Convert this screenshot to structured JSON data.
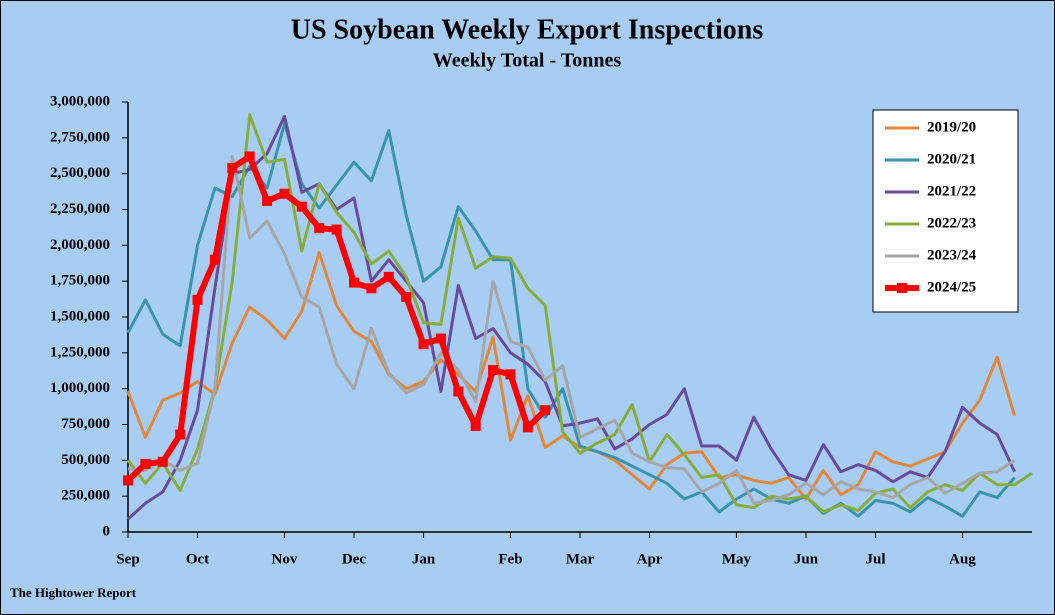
{
  "chart_data": {
    "type": "line",
    "title": "US Soybean Weekly Export Inspections",
    "subtitle": "Weekly Total - Tonnes",
    "footer": "The Hightower Report",
    "categories": [
      "Sep",
      null,
      null,
      null,
      "Oct",
      null,
      null,
      null,
      null,
      "Nov",
      null,
      null,
      null,
      "Dec",
      null,
      null,
      null,
      "Jan",
      null,
      null,
      null,
      null,
      "Feb",
      null,
      null,
      null,
      "Mar",
      null,
      null,
      null,
      "Apr",
      null,
      null,
      null,
      null,
      "May",
      null,
      null,
      null,
      "Jun",
      null,
      null,
      null,
      "Jul",
      null,
      null,
      null,
      null,
      "Aug",
      null,
      null,
      null,
      null
    ],
    "ylim": [
      0,
      3000000
    ],
    "yticks": [
      0,
      {
        "value": 250000,
        "label": "250,000"
      },
      {
        "value": 500000,
        "label": "500,000"
      },
      {
        "value": 750000,
        "label": "750,000"
      },
      {
        "value": 1000000,
        "label": "1,000,000"
      },
      {
        "value": 1250000,
        "label": "1,250,000"
      },
      {
        "value": 1500000,
        "label": "1,500,000"
      },
      {
        "value": 1750000,
        "label": "1,750,000"
      },
      {
        "value": 2000000,
        "label": "2,000,000"
      },
      {
        "value": 2250000,
        "label": "2,250,000"
      },
      {
        "value": 2500000,
        "label": "2,500,000"
      },
      {
        "value": 2750000,
        "label": "2,750,000"
      },
      {
        "value": 3000000,
        "label": "3,000,000"
      }
    ],
    "grid": false,
    "legend": "top-right",
    "series": [
      {
        "name": "2019/20",
        "color": "#e0873a",
        "values": [
          980000,
          660000,
          920000,
          970000,
          1050000,
          960000,
          1320000,
          1570000,
          1480000,
          1350000,
          1540000,
          1950000,
          1580000,
          1400000,
          1330000,
          1100000,
          1000000,
          1050000,
          1200000,
          1100000,
          980000,
          1360000,
          640000,
          950000,
          590000,
          670000,
          590000,
          560000,
          500000,
          400000,
          300000,
          470000,
          550000,
          560000,
          380000,
          400000,
          360000,
          340000,
          380000,
          230000,
          430000,
          260000,
          330000,
          560000,
          490000,
          460000,
          510000,
          560000,
          760000,
          920000,
          1220000,
          810000,
          null
        ]
      },
      {
        "name": "2020/21",
        "color": "#3a93ad",
        "values": [
          1390000,
          1620000,
          1380000,
          1300000,
          2000000,
          2400000,
          2340000,
          2550000,
          2400000,
          2850000,
          2430000,
          2260000,
          2420000,
          2580000,
          2450000,
          2800000,
          2210000,
          1750000,
          1850000,
          2270000,
          2100000,
          1900000,
          1900000,
          1000000,
          800000,
          1000000,
          600000,
          560000,
          520000,
          460000,
          400000,
          340000,
          230000,
          280000,
          140000,
          230000,
          300000,
          230000,
          200000,
          250000,
          130000,
          200000,
          110000,
          220000,
          200000,
          140000,
          240000,
          180000,
          110000,
          280000,
          240000,
          380000,
          null
        ]
      },
      {
        "name": "2021/22",
        "color": "#6a4a9a",
        "values": [
          90000,
          200000,
          280000,
          500000,
          850000,
          1700000,
          2500000,
          2530000,
          2640000,
          2900000,
          2370000,
          2430000,
          2250000,
          2330000,
          1750000,
          1900000,
          1750000,
          1600000,
          980000,
          1720000,
          1350000,
          1420000,
          1250000,
          1170000,
          1050000,
          740000,
          760000,
          790000,
          580000,
          650000,
          750000,
          820000,
          1000000,
          600000,
          600000,
          500000,
          800000,
          580000,
          400000,
          360000,
          610000,
          420000,
          470000,
          430000,
          350000,
          420000,
          380000,
          560000,
          870000,
          760000,
          680000,
          420000,
          null
        ]
      },
      {
        "name": "2022/23",
        "color": "#86ad3a",
        "values": [
          500000,
          340000,
          480000,
          290000,
          580000,
          1000000,
          1750000,
          2910000,
          2580000,
          2600000,
          1960000,
          2430000,
          2230000,
          2090000,
          1870000,
          1960000,
          1780000,
          1460000,
          1450000,
          2190000,
          1840000,
          1920000,
          1910000,
          1700000,
          1580000,
          700000,
          550000,
          620000,
          680000,
          890000,
          490000,
          680000,
          540000,
          380000,
          400000,
          190000,
          170000,
          250000,
          230000,
          250000,
          140000,
          190000,
          150000,
          270000,
          300000,
          170000,
          280000,
          330000,
          290000,
          410000,
          330000,
          330000,
          410000
        ]
      },
      {
        "name": "2023/24",
        "color": "#a6a6a6",
        "values": [
          440000,
          430000,
          500000,
          430000,
          480000,
          1000000,
          2620000,
          2050000,
          2170000,
          1940000,
          1640000,
          1570000,
          1170000,
          1000000,
          1420000,
          1110000,
          970000,
          1030000,
          1250000,
          1130000,
          910000,
          1750000,
          1330000,
          1290000,
          1060000,
          1160000,
          660000,
          720000,
          780000,
          550000,
          490000,
          450000,
          440000,
          280000,
          340000,
          430000,
          200000,
          220000,
          260000,
          340000,
          260000,
          350000,
          300000,
          280000,
          240000,
          330000,
          380000,
          270000,
          340000,
          410000,
          420000,
          500000,
          null
        ]
      },
      {
        "name": "2024/25",
        "color": "#ff0000",
        "marker": "square",
        "values": [
          360000,
          475000,
          490000,
          680000,
          1620000,
          1900000,
          2540000,
          2620000,
          2310000,
          2360000,
          2270000,
          2120000,
          2110000,
          1740000,
          1700000,
          1780000,
          1640000,
          1310000,
          1350000,
          980000,
          740000,
          1130000,
          1100000,
          730000,
          850000,
          null,
          null,
          null,
          null,
          null,
          null,
          null,
          null,
          null,
          null,
          null,
          null,
          null,
          null,
          null,
          null,
          null,
          null,
          null,
          null,
          null,
          null,
          null,
          null,
          null,
          null,
          null,
          null
        ]
      }
    ]
  }
}
